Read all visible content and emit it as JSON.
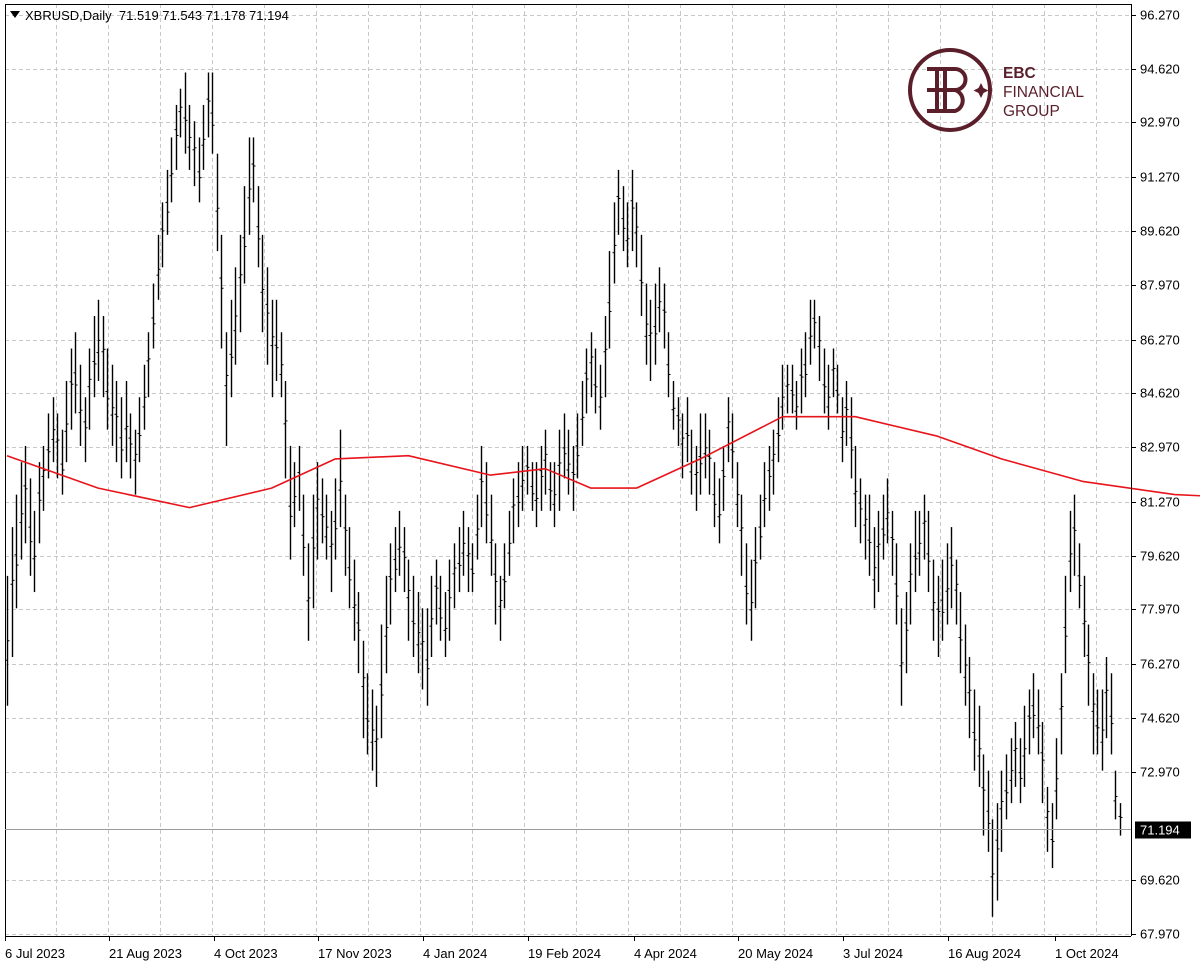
{
  "header": {
    "symbol_timeframe": "XBRUSD,Daily",
    "ohlc": "71.519 71.543 71.178 71.194"
  },
  "logo": {
    "line1": "EBC",
    "line2": "FINANCIAL",
    "line3": "GROUP",
    "color": "#5a1f2a"
  },
  "chart_data": {
    "type": "line",
    "chart_style": "ohlc-bars",
    "title": "",
    "xlabel": "",
    "ylabel": "",
    "ylim": [
      67.97,
      96.27
    ],
    "grid": true,
    "y_ticks": [
      96.27,
      94.62,
      92.97,
      91.27,
      89.62,
      87.97,
      86.27,
      84.62,
      82.97,
      81.27,
      79.62,
      77.97,
      76.27,
      74.62,
      72.97,
      69.62,
      67.97
    ],
    "y_tick_labels": [
      "96.270",
      "94.620",
      "92.970",
      "91.270",
      "89.620",
      "87.970",
      "86.270",
      "84.620",
      "82.970",
      "81.270",
      "79.620",
      "77.970",
      "76.270",
      "74.620",
      "72.970",
      "69.620",
      "67.970"
    ],
    "x_tick_labels": [
      "6 Jul 2023",
      "21 Aug 2023",
      "4 Oct 2023",
      "17 Nov 2023",
      "4 Jan 2024",
      "19 Feb 2024",
      "4 Apr 2024",
      "20 May 2024",
      "3 Jul 2024",
      "16 Aug 2024",
      "1 Oct 2024"
    ],
    "current_price_label": "71.194",
    "current_price": 71.194,
    "series": [
      {
        "style": "ohlc",
        "color": "#000000",
        "points": [
          [
            75.0,
            79.0
          ],
          [
            76.5,
            80.5
          ],
          [
            78.0,
            81.5
          ],
          [
            79.5,
            82.5
          ],
          [
            80.0,
            83.0
          ],
          [
            79.0,
            82.0
          ],
          [
            78.5,
            81.0
          ],
          [
            80.0,
            82.5
          ],
          [
            81.0,
            83.0
          ],
          [
            82.0,
            84.0
          ],
          [
            82.5,
            84.5
          ],
          [
            82.0,
            84.0
          ],
          [
            81.5,
            83.5
          ],
          [
            82.5,
            85.0
          ],
          [
            83.5,
            86.0
          ],
          [
            84.0,
            86.5
          ],
          [
            83.0,
            85.5
          ],
          [
            82.5,
            84.5
          ],
          [
            83.5,
            86.0
          ],
          [
            84.5,
            87.0
          ],
          [
            85.0,
            87.5
          ],
          [
            84.5,
            87.0
          ],
          [
            83.5,
            86.0
          ],
          [
            83.0,
            85.5
          ],
          [
            82.5,
            85.0
          ],
          [
            82.0,
            84.5
          ],
          [
            82.5,
            85.0
          ],
          [
            82.0,
            84.0
          ],
          [
            81.5,
            83.5
          ],
          [
            82.5,
            84.5
          ],
          [
            83.5,
            85.5
          ],
          [
            84.5,
            86.5
          ],
          [
            86.0,
            88.0
          ],
          [
            87.5,
            89.5
          ],
          [
            88.5,
            90.5
          ],
          [
            89.5,
            91.5
          ],
          [
            90.5,
            92.5
          ],
          [
            91.5,
            93.5
          ],
          [
            92.5,
            94.0
          ],
          [
            92.0,
            94.5
          ],
          [
            91.5,
            93.5
          ],
          [
            91.0,
            93.0
          ],
          [
            90.5,
            92.5
          ],
          [
            91.5,
            93.5
          ],
          [
            92.5,
            94.5
          ],
          [
            92.0,
            94.5
          ],
          [
            89.0,
            92.0
          ],
          [
            86.0,
            89.5
          ],
          [
            83.0,
            86.5
          ],
          [
            84.5,
            87.5
          ],
          [
            85.5,
            88.5
          ],
          [
            86.5,
            89.5
          ],
          [
            88.0,
            91.0
          ],
          [
            89.5,
            92.5
          ],
          [
            90.5,
            92.5
          ],
          [
            88.5,
            91.0
          ],
          [
            86.5,
            89.5
          ],
          [
            85.5,
            88.5
          ],
          [
            84.5,
            87.5
          ],
          [
            85.0,
            87.5
          ],
          [
            84.5,
            86.5
          ],
          [
            82.0,
            85.0
          ],
          [
            79.5,
            83.0
          ],
          [
            80.5,
            82.5
          ],
          [
            81.0,
            83.0
          ],
          [
            79.0,
            81.5
          ],
          [
            77.0,
            80.0
          ],
          [
            78.0,
            81.5
          ],
          [
            79.5,
            82.5
          ],
          [
            80.0,
            82.0
          ],
          [
            79.5,
            81.5
          ],
          [
            78.5,
            81.0
          ],
          [
            79.5,
            82.0
          ],
          [
            80.5,
            83.5
          ],
          [
            79.0,
            81.5
          ],
          [
            78.0,
            80.5
          ],
          [
            77.0,
            79.5
          ],
          [
            76.0,
            78.5
          ],
          [
            74.0,
            77.0
          ],
          [
            73.5,
            76.0
          ],
          [
            73.0,
            75.5
          ],
          [
            72.5,
            75.0
          ],
          [
            74.0,
            77.5
          ],
          [
            76.0,
            79.0
          ],
          [
            77.5,
            80.0
          ],
          [
            78.5,
            80.5
          ],
          [
            79.0,
            81.0
          ],
          [
            78.5,
            80.5
          ],
          [
            77.0,
            79.5
          ],
          [
            76.5,
            79.0
          ],
          [
            76.0,
            78.5
          ],
          [
            75.5,
            78.0
          ],
          [
            75.0,
            78.0
          ],
          [
            76.5,
            79.0
          ],
          [
            77.5,
            79.5
          ],
          [
            77.0,
            79.0
          ],
          [
            76.5,
            78.5
          ],
          [
            77.0,
            79.5
          ],
          [
            78.0,
            80.0
          ],
          [
            78.5,
            80.5
          ],
          [
            79.0,
            81.0
          ],
          [
            78.5,
            80.5
          ],
          [
            78.5,
            80.0
          ],
          [
            79.5,
            81.5
          ],
          [
            80.5,
            83.0
          ],
          [
            80.0,
            82.5
          ],
          [
            79.0,
            81.5
          ],
          [
            77.5,
            80.0
          ],
          [
            77.0,
            79.0
          ],
          [
            78.0,
            80.0
          ],
          [
            79.0,
            81.0
          ],
          [
            80.0,
            82.0
          ],
          [
            80.5,
            82.5
          ],
          [
            81.0,
            83.0
          ],
          [
            81.5,
            83.0
          ],
          [
            81.0,
            82.5
          ],
          [
            80.5,
            82.5
          ],
          [
            81.0,
            83.0
          ],
          [
            81.5,
            83.5
          ],
          [
            81.0,
            82.5
          ],
          [
            80.5,
            82.5
          ],
          [
            81.0,
            83.5
          ],
          [
            82.0,
            84.0
          ],
          [
            81.5,
            83.5
          ],
          [
            81.0,
            83.0
          ],
          [
            82.0,
            84.0
          ],
          [
            83.0,
            85.0
          ],
          [
            84.0,
            86.0
          ],
          [
            84.5,
            86.5
          ],
          [
            84.0,
            86.0
          ],
          [
            83.5,
            85.5
          ],
          [
            84.5,
            87.0
          ],
          [
            86.0,
            89.0
          ],
          [
            88.0,
            90.5
          ],
          [
            89.5,
            91.5
          ],
          [
            89.0,
            91.0
          ],
          [
            88.5,
            90.5
          ],
          [
            89.0,
            91.5
          ],
          [
            88.5,
            90.5
          ],
          [
            87.0,
            89.5
          ],
          [
            85.5,
            88.0
          ],
          [
            85.0,
            87.5
          ],
          [
            85.5,
            88.0
          ],
          [
            86.5,
            88.5
          ],
          [
            86.0,
            88.0
          ],
          [
            84.5,
            86.5
          ],
          [
            83.5,
            85.0
          ],
          [
            83.0,
            84.5
          ],
          [
            82.0,
            84.0
          ],
          [
            82.5,
            84.5
          ],
          [
            81.5,
            83.5
          ],
          [
            81.0,
            83.0
          ],
          [
            81.5,
            84.0
          ],
          [
            82.0,
            84.0
          ],
          [
            81.5,
            83.5
          ],
          [
            80.5,
            82.5
          ],
          [
            80.0,
            82.0
          ],
          [
            81.0,
            83.0
          ],
          [
            82.5,
            84.5
          ],
          [
            82.0,
            84.0
          ],
          [
            80.5,
            82.5
          ],
          [
            79.0,
            81.5
          ],
          [
            77.5,
            80.0
          ],
          [
            77.0,
            79.5
          ],
          [
            78.0,
            80.5
          ],
          [
            79.5,
            81.5
          ],
          [
            80.5,
            82.5
          ],
          [
            81.0,
            83.0
          ],
          [
            81.5,
            83.5
          ],
          [
            82.5,
            84.5
          ],
          [
            83.5,
            85.5
          ],
          [
            84.0,
            85.5
          ],
          [
            84.0,
            85.5
          ],
          [
            83.5,
            85.0
          ],
          [
            84.0,
            86.0
          ],
          [
            84.5,
            86.5
          ],
          [
            85.5,
            87.5
          ],
          [
            86.0,
            87.5
          ],
          [
            85.0,
            87.0
          ],
          [
            84.0,
            86.0
          ],
          [
            83.5,
            85.5
          ],
          [
            84.5,
            86.0
          ],
          [
            84.0,
            85.5
          ],
          [
            82.5,
            84.5
          ],
          [
            83.0,
            85.0
          ],
          [
            82.0,
            84.5
          ],
          [
            80.5,
            83.0
          ],
          [
            80.0,
            82.0
          ],
          [
            79.5,
            81.5
          ],
          [
            79.0,
            81.5
          ],
          [
            78.0,
            80.5
          ],
          [
            78.5,
            81.0
          ],
          [
            79.5,
            81.5
          ],
          [
            80.0,
            82.0
          ],
          [
            79.0,
            81.0
          ],
          [
            77.5,
            80.0
          ],
          [
            75.0,
            78.0
          ],
          [
            76.0,
            78.5
          ],
          [
            77.5,
            80.0
          ],
          [
            78.5,
            81.0
          ],
          [
            79.0,
            81.0
          ],
          [
            79.5,
            81.5
          ],
          [
            78.5,
            81.0
          ],
          [
            77.0,
            79.5
          ],
          [
            76.5,
            79.0
          ],
          [
            77.0,
            79.5
          ],
          [
            77.5,
            80.0
          ],
          [
            78.0,
            80.5
          ],
          [
            77.5,
            79.5
          ],
          [
            76.0,
            78.5
          ],
          [
            75.0,
            77.5
          ],
          [
            74.0,
            76.5
          ],
          [
            73.0,
            75.5
          ],
          [
            72.5,
            75.0
          ],
          [
            71.0,
            73.5
          ],
          [
            70.5,
            73.0
          ],
          [
            68.5,
            71.5
          ],
          [
            69.0,
            72.0
          ],
          [
            70.5,
            73.0
          ],
          [
            71.5,
            73.5
          ],
          [
            72.0,
            74.0
          ],
          [
            72.5,
            74.5
          ],
          [
            72.0,
            74.0
          ],
          [
            72.5,
            75.0
          ],
          [
            73.5,
            75.5
          ],
          [
            74.0,
            76.0
          ],
          [
            73.5,
            75.5
          ],
          [
            72.0,
            74.5
          ],
          [
            70.5,
            72.5
          ],
          [
            70.0,
            72.0
          ],
          [
            71.5,
            74.0
          ],
          [
            73.5,
            76.0
          ],
          [
            76.0,
            79.0
          ],
          [
            78.5,
            81.0
          ],
          [
            79.0,
            81.5
          ],
          [
            78.0,
            80.0
          ],
          [
            76.5,
            79.0
          ],
          [
            75.0,
            77.5
          ],
          [
            73.5,
            76.0
          ],
          [
            73.5,
            75.5
          ],
          [
            73.0,
            75.5
          ],
          [
            74.0,
            76.5
          ],
          [
            73.5,
            76.0
          ],
          [
            71.5,
            73.0
          ],
          [
            71.0,
            72.0
          ]
        ]
      },
      {
        "name": "",
        "style": "moving-average",
        "color": "#e8141b",
        "x_index": [
          0,
          20,
          40,
          58,
          72,
          88,
          106,
          118,
          128,
          138,
          152,
          170,
          186,
          204,
          218,
          236,
          256,
          272,
          290
        ],
        "values": [
          82.7,
          81.7,
          81.1,
          81.7,
          82.6,
          82.7,
          82.1,
          82.3,
          81.7,
          81.7,
          82.6,
          83.9,
          83.9,
          83.3,
          82.6,
          81.9,
          81.5,
          81.4,
          81.1
        ]
      }
    ]
  }
}
